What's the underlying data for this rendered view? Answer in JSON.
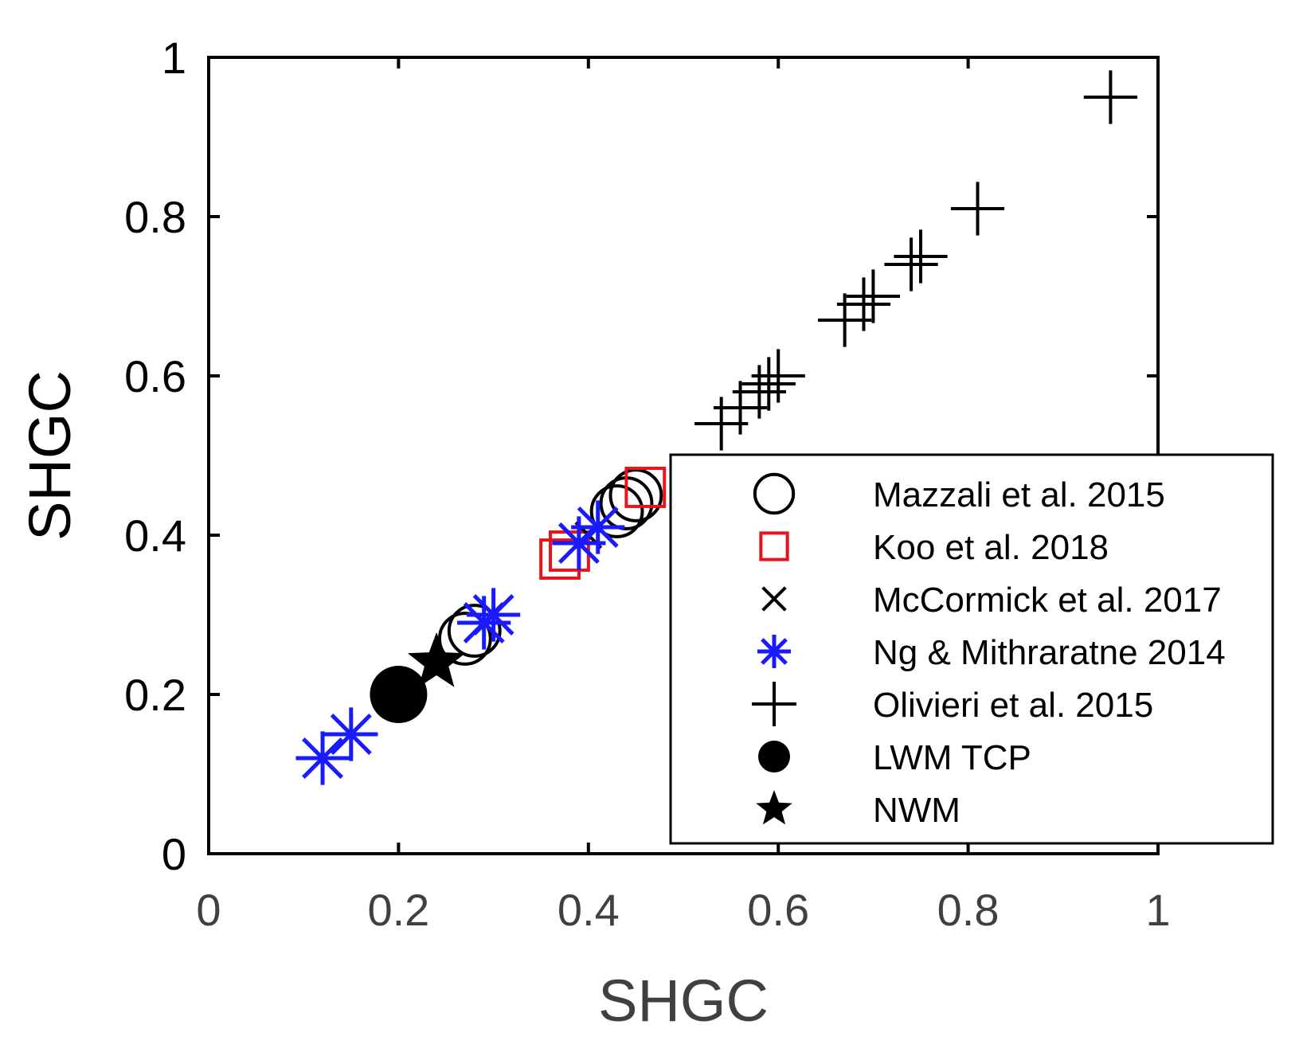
{
  "chart_data": {
    "type": "scatter",
    "title": "",
    "xlabel": "SHGC",
    "ylabel": "SHGC",
    "xlim": [
      0,
      1
    ],
    "ylim": [
      0,
      1
    ],
    "xticks": [
      "0",
      "0.2",
      "0.4",
      "0.6",
      "0.8",
      "1"
    ],
    "yticks": [
      "0",
      "0.2",
      "0.4",
      "0.6",
      "0.8",
      "1"
    ],
    "grid": false,
    "legend_position": "bottom-right",
    "colors": {
      "axis_labels": "#404040",
      "black": "#000000",
      "red": "#e8141b",
      "blue": "#1a1aff"
    },
    "series": [
      {
        "name": "Mazzali et al. 2015",
        "marker": "circle-open",
        "color": "#000000",
        "x": [
          0.27,
          0.28,
          0.43,
          0.44,
          0.45
        ],
        "y": [
          0.27,
          0.28,
          0.43,
          0.44,
          0.45
        ]
      },
      {
        "name": "Koo et al. 2018",
        "marker": "square-open",
        "color": "#e8141b",
        "x": [
          0.37,
          0.38,
          0.46
        ],
        "y": [
          0.37,
          0.38,
          0.46
        ]
      },
      {
        "name": "McCormick et al. 2017",
        "marker": "x",
        "color": "#000000",
        "x": [
          0.39,
          0.4
        ],
        "y": [
          0.39,
          0.4
        ]
      },
      {
        "name": "Ng & Mithraratne 2014",
        "marker": "asterisk",
        "color": "#1a1aff",
        "x": [
          0.12,
          0.15,
          0.29,
          0.3,
          0.39,
          0.41
        ],
        "y": [
          0.12,
          0.15,
          0.29,
          0.3,
          0.39,
          0.41
        ]
      },
      {
        "name": "Olivieri et al. 2015",
        "marker": "plus",
        "color": "#000000",
        "x": [
          0.54,
          0.56,
          0.58,
          0.59,
          0.6,
          0.67,
          0.69,
          0.7,
          0.74,
          0.75,
          0.81,
          0.95
        ],
        "y": [
          0.54,
          0.56,
          0.58,
          0.59,
          0.6,
          0.67,
          0.69,
          0.7,
          0.74,
          0.75,
          0.81,
          0.95
        ]
      },
      {
        "name": "LWM TCP",
        "marker": "circle-filled",
        "color": "#000000",
        "x": [
          0.2
        ],
        "y": [
          0.2
        ]
      },
      {
        "name": "NWM",
        "marker": "star",
        "color": "#000000",
        "x": [
          0.24
        ],
        "y": [
          0.24
        ]
      }
    ]
  }
}
